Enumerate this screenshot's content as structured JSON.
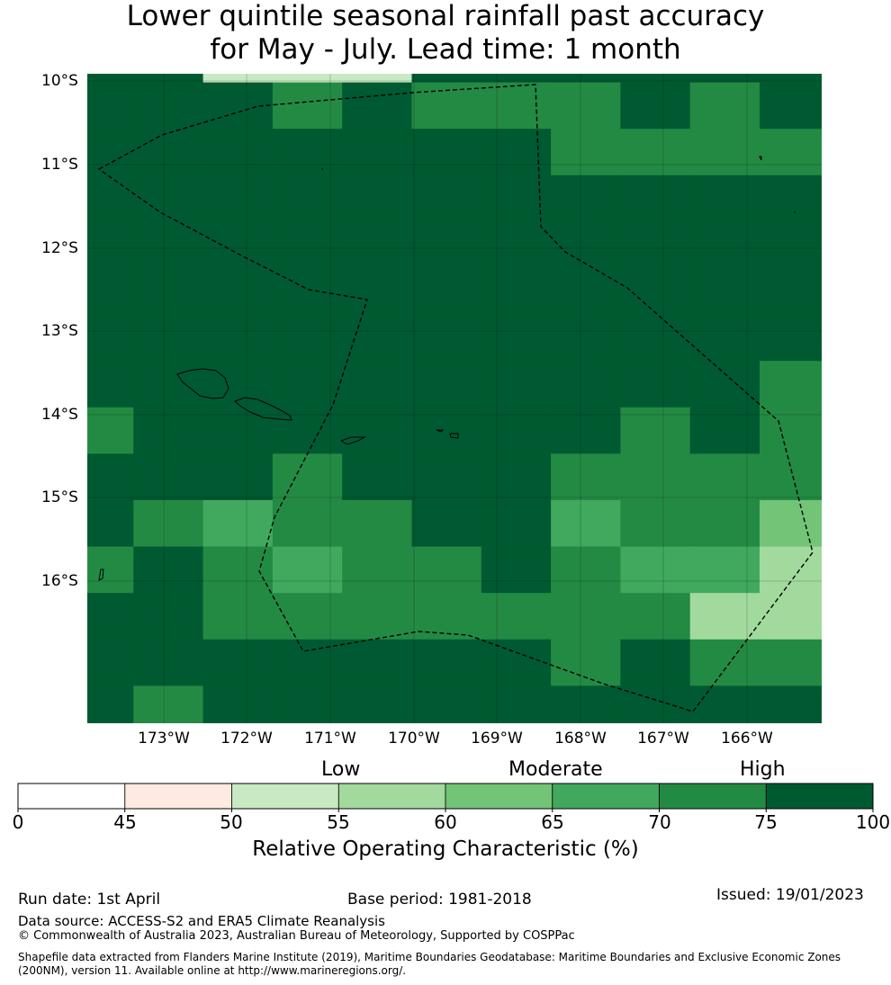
{
  "title": {
    "line1": "Lower quintile seasonal rainfall past accuracy",
    "line2": "for May - July. Lead time: 1 month"
  },
  "map": {
    "lat_labels": [
      "10°S",
      "11°S",
      "12°S",
      "13°S",
      "14°S",
      "15°S",
      "16°S"
    ],
    "lon_labels": [
      "173°W",
      "172°W",
      "171°W",
      "170°W",
      "169°W",
      "168°W",
      "167°W",
      "166°W"
    ],
    "grid_rows": [
      [
        75,
        75,
        50,
        50,
        50,
        75,
        75,
        75,
        75,
        75,
        75
      ],
      [
        75,
        75,
        75,
        70,
        75,
        72,
        72,
        72,
        75,
        70,
        75
      ],
      [
        75,
        75,
        75,
        75,
        75,
        75,
        75,
        72,
        70,
        72,
        72
      ],
      [
        75,
        75,
        75,
        75,
        75,
        75,
        75,
        75,
        75,
        75,
        75
      ],
      [
        75,
        75,
        75,
        75,
        75,
        75,
        75,
        75,
        75,
        75,
        75
      ],
      [
        75,
        75,
        75,
        75,
        75,
        75,
        75,
        75,
        75,
        75,
        75
      ],
      [
        75,
        75,
        75,
        75,
        75,
        75,
        75,
        75,
        75,
        75,
        75
      ],
      [
        75,
        75,
        75,
        75,
        75,
        75,
        75,
        75,
        75,
        75,
        72
      ],
      [
        72,
        75,
        75,
        75,
        75,
        75,
        75,
        75,
        72,
        75,
        72
      ],
      [
        75,
        75,
        75,
        72,
        75,
        75,
        75,
        72,
        72,
        72,
        70
      ],
      [
        75,
        72,
        65,
        72,
        72,
        75,
        75,
        65,
        72,
        70,
        60
      ],
      [
        72,
        75,
        70,
        65,
        72,
        72,
        75,
        70,
        65,
        65,
        55
      ],
      [
        75,
        75,
        70,
        70,
        72,
        70,
        70,
        70,
        70,
        55,
        55
      ],
      [
        75,
        75,
        75,
        75,
        75,
        75,
        75,
        72,
        75,
        70,
        72
      ],
      [
        75,
        72,
        75,
        75,
        75,
        75,
        75,
        75,
        75,
        75,
        75
      ]
    ]
  },
  "colorbar": {
    "categories": [
      "Low",
      "Moderate",
      "High"
    ],
    "ticks": [
      "0",
      "45",
      "50",
      "55",
      "60",
      "65",
      "70",
      "75",
      "100"
    ],
    "colors": [
      "#ffffff",
      "#feeae0",
      "#c8e9c1",
      "#a1da9c",
      "#73c476",
      "#40a95d",
      "#238a44",
      "#005a31"
    ],
    "title": "Relative Operating Characteristic (%)"
  },
  "footer": {
    "run_date": "Run date: 1st April",
    "base_period": "Base period: 1981-2018",
    "issued": "Issued: 19/01/2023",
    "data_source": "Data source: ACCESS-S2 and ERA5 Climate Reanalysis",
    "copyright": "© Commonwealth of Australia 2023, Australian Bureau of Meteorology, Supported by COSPPac",
    "shapefile_line1": "Shapefile data extracted from Flanders Marine Institute (2019), Maritime Boundaries Geodatabase: Maritime Boundaries and Exclusive Economic Zones",
    "shapefile_line2": "(200NM), version 11. Available online at http://www.marineregions.org/."
  }
}
